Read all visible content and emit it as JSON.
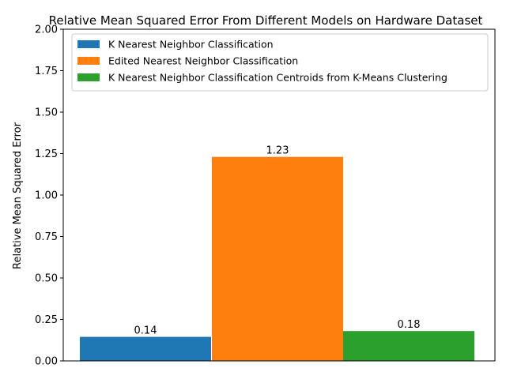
{
  "chart_data": {
    "type": "bar",
    "title": "Relative Mean Squared Error From Different Models on Hardware Dataset",
    "xlabel": "",
    "ylabel": "Relative Mean Squared Error",
    "ylim": [
      0,
      2.0
    ],
    "yticks": [
      "0.00",
      "0.25",
      "0.50",
      "0.75",
      "1.00",
      "1.25",
      "1.50",
      "1.75",
      "2.00"
    ],
    "grid": false,
    "legend_position": "top",
    "series": [
      {
        "name": "K Nearest Neighbor Classification",
        "value": 0.145,
        "label": "0.14",
        "color": "#1f77b4"
      },
      {
        "name": "Edited Nearest Neighbor Classification",
        "value": 1.23,
        "label": "1.23",
        "color": "#ff7f0e"
      },
      {
        "name": "K Nearest Neighbor Classification Centroids from K-Means Clustering",
        "value": 0.18,
        "label": "0.18",
        "color": "#2ca02c"
      }
    ]
  }
}
